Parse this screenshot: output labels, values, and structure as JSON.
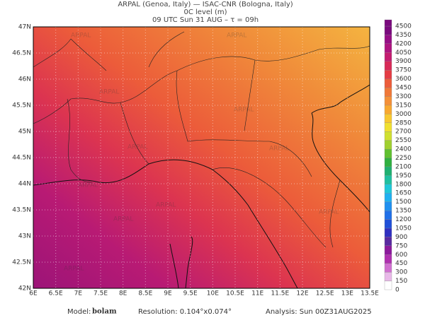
{
  "header": {
    "line1": "ARPAL (Genoa, Italy)  —  ISAC-CNR (Bologna, Italy)",
    "line2": "0C level (m)",
    "line3": "09 UTC Sun 31 AUG  –  τ = 09h"
  },
  "map": {
    "lat_labels": [
      "47N",
      "46.5N",
      "46N",
      "45.5N",
      "45N",
      "44.5N",
      "44N",
      "43.5N",
      "43N",
      "42.5N",
      "42N"
    ],
    "lon_labels": [
      "6E",
      "6.5E",
      "7E",
      "7.5E",
      "8E",
      "8.5E",
      "9E",
      "9.5E",
      "10E",
      "10.5E",
      "11E",
      "11.5E",
      "12E",
      "12.5E",
      "13E",
      "13.5E"
    ],
    "watermark": "ARPAL"
  },
  "colorbar": {
    "labels": [
      "0",
      "150",
      "300",
      "450",
      "600",
      "750",
      "900",
      "1050",
      "1200",
      "1350",
      "1500",
      "1650",
      "1800",
      "1950",
      "2100",
      "2250",
      "2400",
      "2550",
      "2700",
      "2850",
      "3000",
      "3150",
      "3300",
      "3450",
      "3600",
      "3750",
      "3900",
      "4050",
      "4200",
      "4350",
      "4500"
    ],
    "colors": [
      "#ffffff",
      "#e8b8e8",
      "#d070d0",
      "#b030b0",
      "#8c1a9c",
      "#5a2aa0",
      "#3030c0",
      "#2050d8",
      "#2070e8",
      "#2090f0",
      "#20b0f0",
      "#20c8d8",
      "#20c0a0",
      "#20b070",
      "#30b040",
      "#60c030",
      "#a0d030",
      "#d0e030",
      "#f0e030",
      "#f8c830",
      "#f8a830",
      "#f49038",
      "#f07838",
      "#ec5c3a",
      "#e43c44",
      "#d82a58",
      "#c41c70",
      "#ae1480",
      "#960e86",
      "#7a0a7e"
    ]
  },
  "footer": {
    "model_label": "Model:",
    "model": "bolam",
    "resolution": "Resolution: 0.104°x0.074°",
    "analysis": "Analysis: Sun 00Z31AUG2025"
  }
}
